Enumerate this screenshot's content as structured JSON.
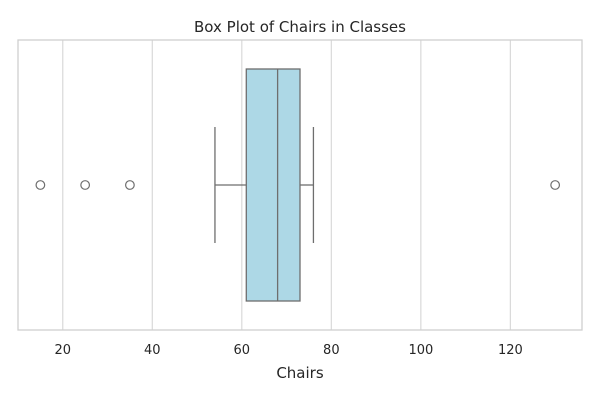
{
  "chart_data": {
    "type": "box",
    "title": "Box Plot of Chairs in Classes",
    "xlabel": "Chairs",
    "ylabel": "",
    "xlim": [
      10,
      136
    ],
    "xticks": [
      20,
      40,
      60,
      80,
      100,
      120
    ],
    "grid": true,
    "orientation": "horizontal",
    "box_color": "#add8e6",
    "line_color": "#6e6e6e",
    "stats": {
      "whisker_low": 54,
      "q1": 61,
      "median": 68,
      "q3": 73,
      "whisker_high": 76
    },
    "outliers": [
      15,
      25,
      35,
      130
    ]
  }
}
